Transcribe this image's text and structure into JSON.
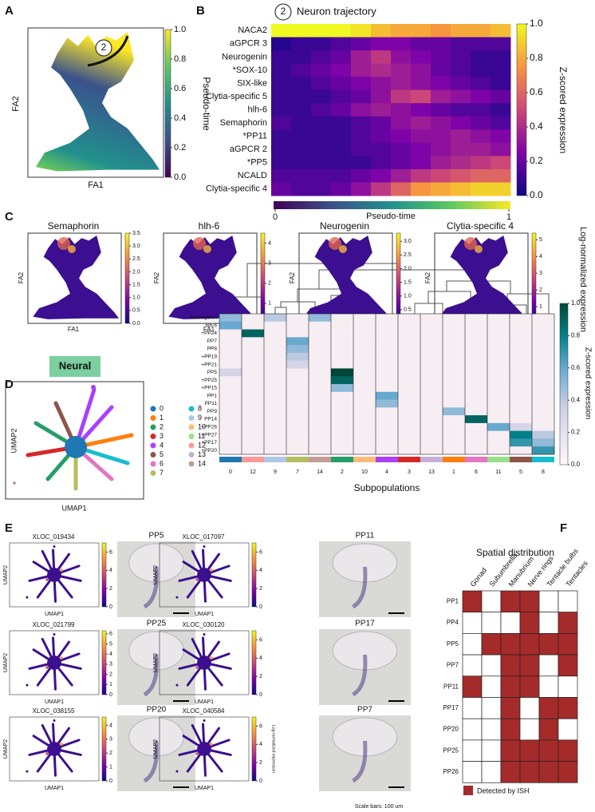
{
  "panel_a": {
    "label": "A",
    "xlabel": "FA1",
    "ylabel": "FA2",
    "trajectory": "2",
    "colorbar": {
      "label": "Pseudo-time",
      "lim": [
        0,
        1
      ],
      "ticks": [
        {
          "value": 0,
          "label": "0.0"
        },
        0.2,
        0.4,
        0.6,
        0.8,
        {
          "value": 1,
          "label": "1.0"
        }
      ]
    }
  },
  "panel_b": {
    "label": "B",
    "marker": "2",
    "title": "Neuron trajectory",
    "genes": [
      "NACA2",
      "aGPCR 3",
      "Neurogenin",
      "*SOX-10",
      "SIX-like",
      "Clytia-specific 5",
      "hlh-6",
      "Semaphorin",
      "*PP11",
      "aGPCR 2",
      "*PP5",
      "NCALD",
      "Clytia-specific 4"
    ],
    "values": [
      [
        1,
        1,
        1,
        1,
        0.95,
        0.85,
        0.8,
        0.8,
        0.75,
        0.8,
        0.8,
        0.85
      ],
      [
        0.05,
        0.1,
        0.1,
        0.15,
        0.2,
        0.25,
        0.25,
        0.2,
        0.2,
        0.15,
        0.15,
        0.15
      ],
      [
        0.1,
        0.1,
        0.15,
        0.2,
        0.35,
        0.45,
        0.3,
        0.25,
        0.2,
        0.15,
        0.1,
        0.1
      ],
      [
        0.1,
        0.15,
        0.2,
        0.25,
        0.35,
        0.4,
        0.35,
        0.3,
        0.2,
        0.15,
        0.1,
        0.1
      ],
      [
        0.1,
        0.1,
        0.15,
        0.2,
        0.25,
        0.3,
        0.35,
        0.3,
        0.25,
        0.2,
        0.15,
        0.1
      ],
      [
        0.1,
        0.1,
        0.1,
        0.15,
        0.2,
        0.3,
        0.45,
        0.5,
        0.35,
        0.3,
        0.25,
        0.2
      ],
      [
        0.1,
        0.1,
        0.15,
        0.2,
        0.3,
        0.35,
        0.3,
        0.25,
        0.2,
        0.15,
        0.15,
        0.1
      ],
      [
        0.15,
        0.1,
        0.1,
        0.1,
        0.15,
        0.2,
        0.3,
        0.35,
        0.3,
        0.25,
        0.2,
        0.15
      ],
      [
        0.1,
        0.1,
        0.1,
        0.1,
        0.15,
        0.2,
        0.25,
        0.3,
        0.3,
        0.35,
        0.3,
        0.25
      ],
      [
        0.1,
        0.1,
        0.1,
        0.1,
        0.15,
        0.15,
        0.2,
        0.25,
        0.3,
        0.35,
        0.35,
        0.3
      ],
      [
        0.1,
        0.1,
        0.1,
        0.1,
        0.1,
        0.15,
        0.2,
        0.25,
        0.35,
        0.4,
        0.45,
        0.5
      ],
      [
        0.15,
        0.15,
        0.15,
        0.15,
        0.2,
        0.25,
        0.35,
        0.45,
        0.5,
        0.55,
        0.6,
        0.6
      ],
      [
        0.2,
        0.15,
        0.15,
        0.2,
        0.3,
        0.45,
        0.6,
        0.75,
        0.8,
        0.85,
        0.9,
        0.9
      ]
    ],
    "colorbar": {
      "label": "Z-scored expression",
      "lim": [
        0,
        1
      ],
      "ticks": [
        {
          "value": 0,
          "label": "0.0"
        },
        0.2,
        0.4,
        0.6,
        0.8,
        {
          "value": 1,
          "label": "1.0"
        }
      ]
    },
    "pseudotime": {
      "label": "Pseudo-time",
      "lim": [
        0,
        1
      ],
      "ticks": [
        0,
        1
      ]
    }
  },
  "panel_c": {
    "label": "C",
    "xlabel": "FA1",
    "ylabel": "FA2",
    "colorbar_label": "Log-normalized expression",
    "plots": [
      {
        "title": "Semaphorin",
        "lim": [
          0,
          3.5
        ],
        "ticks": [
          {
            "value": 0,
            "label": "0.0"
          },
          0.5,
          {
            "value": 1,
            "label": "1.0"
          },
          1.5,
          {
            "value": 2,
            "label": "2.0"
          },
          2.5,
          {
            "value": 3,
            "label": "3.0"
          },
          3.5
        ]
      },
      {
        "title": "hlh-6",
        "lim": [
          0,
          4.5
        ],
        "ticks": [
          0,
          1,
          2,
          3,
          4
        ]
      },
      {
        "title": "Neurogenin",
        "lim": [
          0,
          3.3
        ],
        "ticks": [
          {
            "value": 0,
            "label": "0.0"
          },
          0.5,
          {
            "value": 1,
            "label": "1.0"
          },
          1.5,
          {
            "value": 2,
            "label": "2.0"
          },
          2.5,
          {
            "value": 3,
            "label": "3.0"
          }
        ]
      },
      {
        "title": "Clytia-specific 4",
        "lim": [
          0,
          5.4
        ],
        "ticks": [
          0,
          1,
          2,
          3,
          4,
          5
        ]
      }
    ]
  },
  "panel_d": {
    "label": "D",
    "tag": "Neural",
    "xlabel": "UMAP1",
    "ylabel": "UMAP2",
    "clusters": [
      {
        "name": "0",
        "color": "#1f77b4"
      },
      {
        "name": "1",
        "color": "#ff7f0e"
      },
      {
        "name": "2",
        "color": "#279e68"
      },
      {
        "name": "3",
        "color": "#d62728"
      },
      {
        "name": "4",
        "color": "#aa40fc"
      },
      {
        "name": "5",
        "color": "#8c564b"
      },
      {
        "name": "6",
        "color": "#e377c2"
      },
      {
        "name": "7",
        "color": "#b5bd61"
      },
      {
        "name": "8",
        "color": "#17becf"
      },
      {
        "name": "9",
        "color": "#aec7e8"
      },
      {
        "name": "10",
        "color": "#ffbb78"
      },
      {
        "name": "11",
        "color": "#98df8a"
      },
      {
        "name": "12",
        "color": "#ff9896"
      },
      {
        "name": "13",
        "color": "#c5b0d5"
      },
      {
        "name": "14",
        "color": "#c49c94"
      }
    ],
    "heatmap": {
      "genes": [
        "Neurogenin",
        "hlh-6",
        "+PP24",
        "PP7",
        "PP8",
        "+PP19",
        "+PP21",
        "PP5",
        "+PP25",
        "+PP15",
        "PP1",
        "PP11",
        "PP9",
        "PP14",
        "+PP26",
        "+PP27",
        "+PP17",
        "+PP20"
      ],
      "columns": [
        "0",
        "12",
        "9",
        "7",
        "14",
        "2",
        "10",
        "4",
        "3",
        "13",
        "1",
        "6",
        "11",
        "5",
        "8"
      ],
      "values": [
        [
          0.5,
          0,
          0.4,
          0,
          0.5,
          0,
          0,
          0,
          0,
          0,
          0,
          0,
          0,
          0,
          0
        ],
        [
          0.6,
          0,
          0,
          0,
          0,
          0,
          0,
          0,
          0,
          0,
          0,
          0,
          0,
          0,
          0
        ],
        [
          0,
          0.9,
          0,
          0,
          0,
          0,
          0,
          0,
          0,
          0,
          0,
          0,
          0,
          0,
          0
        ],
        [
          0,
          0,
          0,
          0.6,
          0,
          0,
          0,
          0,
          0,
          0,
          0,
          0,
          0,
          0,
          0
        ],
        [
          0,
          0,
          0,
          0.5,
          0,
          0,
          0,
          0,
          0,
          0,
          0,
          0,
          0,
          0,
          0
        ],
        [
          0,
          0,
          0,
          0.4,
          0,
          0,
          0,
          0,
          0,
          0,
          0,
          0,
          0,
          0,
          0
        ],
        [
          0,
          0,
          0,
          0.3,
          0,
          0,
          0,
          0,
          0,
          0,
          0,
          0,
          0,
          0,
          0
        ],
        [
          0.3,
          0,
          0,
          0,
          0,
          1,
          0,
          0,
          0,
          0,
          0,
          0,
          0,
          0,
          0
        ],
        [
          0,
          0,
          0,
          0,
          0,
          0.9,
          0,
          0,
          0,
          0,
          0,
          0,
          0,
          0,
          0
        ],
        [
          0,
          0,
          0,
          0,
          0,
          0.5,
          0,
          0,
          0,
          0,
          0,
          0,
          0,
          0,
          0
        ],
        [
          0,
          0,
          0,
          0,
          0,
          0,
          0,
          0.6,
          0,
          0,
          0,
          0,
          0,
          0,
          0
        ],
        [
          0,
          0,
          0,
          0,
          0,
          0,
          0,
          0.5,
          0,
          0,
          0,
          0,
          0,
          0,
          0
        ],
        [
          0,
          0,
          0,
          0,
          0,
          0,
          0,
          0,
          0,
          0,
          0.5,
          0,
          0,
          0,
          0
        ],
        [
          0,
          0,
          0,
          0,
          0,
          0,
          0,
          0,
          0,
          0,
          0,
          0.9,
          0,
          0,
          0
        ],
        [
          0,
          0,
          0,
          0,
          0,
          0,
          0,
          0,
          0,
          0,
          0,
          0,
          0.6,
          0.3,
          0
        ],
        [
          0,
          0,
          0,
          0,
          0,
          0,
          0,
          0,
          0,
          0,
          0,
          0,
          0,
          0.8,
          0.4
        ],
        [
          0,
          0,
          0,
          0,
          0,
          0,
          0,
          0,
          0,
          0,
          0,
          0,
          0,
          0.7,
          0.5
        ],
        [
          0,
          0,
          0,
          0,
          0,
          0,
          0,
          0,
          0,
          0,
          0,
          0,
          0,
          0,
          0.7
        ]
      ],
      "colorbar": {
        "label": "Z-scored expression",
        "lim": [
          0,
          1
        ],
        "ticks": [
          {
            "value": 0,
            "label": "0.0"
          },
          0.2,
          0.4,
          0.6,
          0.8,
          {
            "value": 1,
            "label": "1.0"
          }
        ]
      },
      "xlabel": "Subpopulations"
    }
  },
  "panel_e": {
    "label": "E",
    "xlabel": "UMAP1",
    "ylabel": "UMAP2",
    "colorbar_label": "Log-normalized expression",
    "note": "Scale bars: 100 um",
    "pairs": [
      {
        "gene": "XLOC_019434",
        "lim": [
          0,
          7
        ],
        "ticks": [
          0,
          2,
          4,
          6
        ],
        "image_title": "PP5"
      },
      {
        "gene": "XLOC_017097",
        "lim": [
          0,
          7
        ],
        "ticks": [
          0,
          2,
          4,
          6
        ],
        "image_title": "PP11"
      },
      {
        "gene": "XLOC_021799",
        "lim": [
          0,
          6.3
        ],
        "ticks": [
          0,
          1,
          2,
          3,
          4,
          5,
          6
        ],
        "image_title": "PP25"
      },
      {
        "gene": "XLOC_030120",
        "lim": [
          0,
          7
        ],
        "ticks": [
          0,
          2,
          4,
          6
        ],
        "image_title": "PP17"
      },
      {
        "gene": "XLOC_038155",
        "lim": [
          0,
          4.6
        ],
        "ticks": [
          0,
          1,
          2,
          3,
          4
        ],
        "image_title": "PP20"
      },
      {
        "gene": "XLOC_040584",
        "lim": [
          0,
          7
        ],
        "ticks": [
          0,
          2,
          4,
          6
        ],
        "image_title": "PP7"
      }
    ]
  },
  "panel_f": {
    "label": "F",
    "title": "Spatial distribution",
    "color": "#a52a2a",
    "legend": "Detected by ISH",
    "columns": [
      "Gonad",
      "Subumbrella",
      "Manubrium",
      "Nerve rings",
      "Tentacle bulbs",
      "Tentacles"
    ],
    "rows": [
      "PP1",
      "PP4",
      "PP5",
      "PP7",
      "PP11",
      "PP17",
      "PP20",
      "PP25",
      "PP26"
    ],
    "detected": [
      [
        1,
        0,
        1,
        1,
        0,
        0
      ],
      [
        0,
        0,
        0,
        1,
        0,
        1
      ],
      [
        0,
        1,
        1,
        1,
        1,
        1
      ],
      [
        0,
        0,
        1,
        1,
        0,
        1
      ],
      [
        1,
        0,
        1,
        1,
        0,
        0
      ],
      [
        0,
        0,
        1,
        0,
        1,
        1
      ],
      [
        0,
        0,
        1,
        0,
        1,
        0
      ],
      [
        0,
        0,
        1,
        1,
        1,
        1
      ],
      [
        0,
        0,
        1,
        1,
        1,
        1
      ]
    ]
  }
}
